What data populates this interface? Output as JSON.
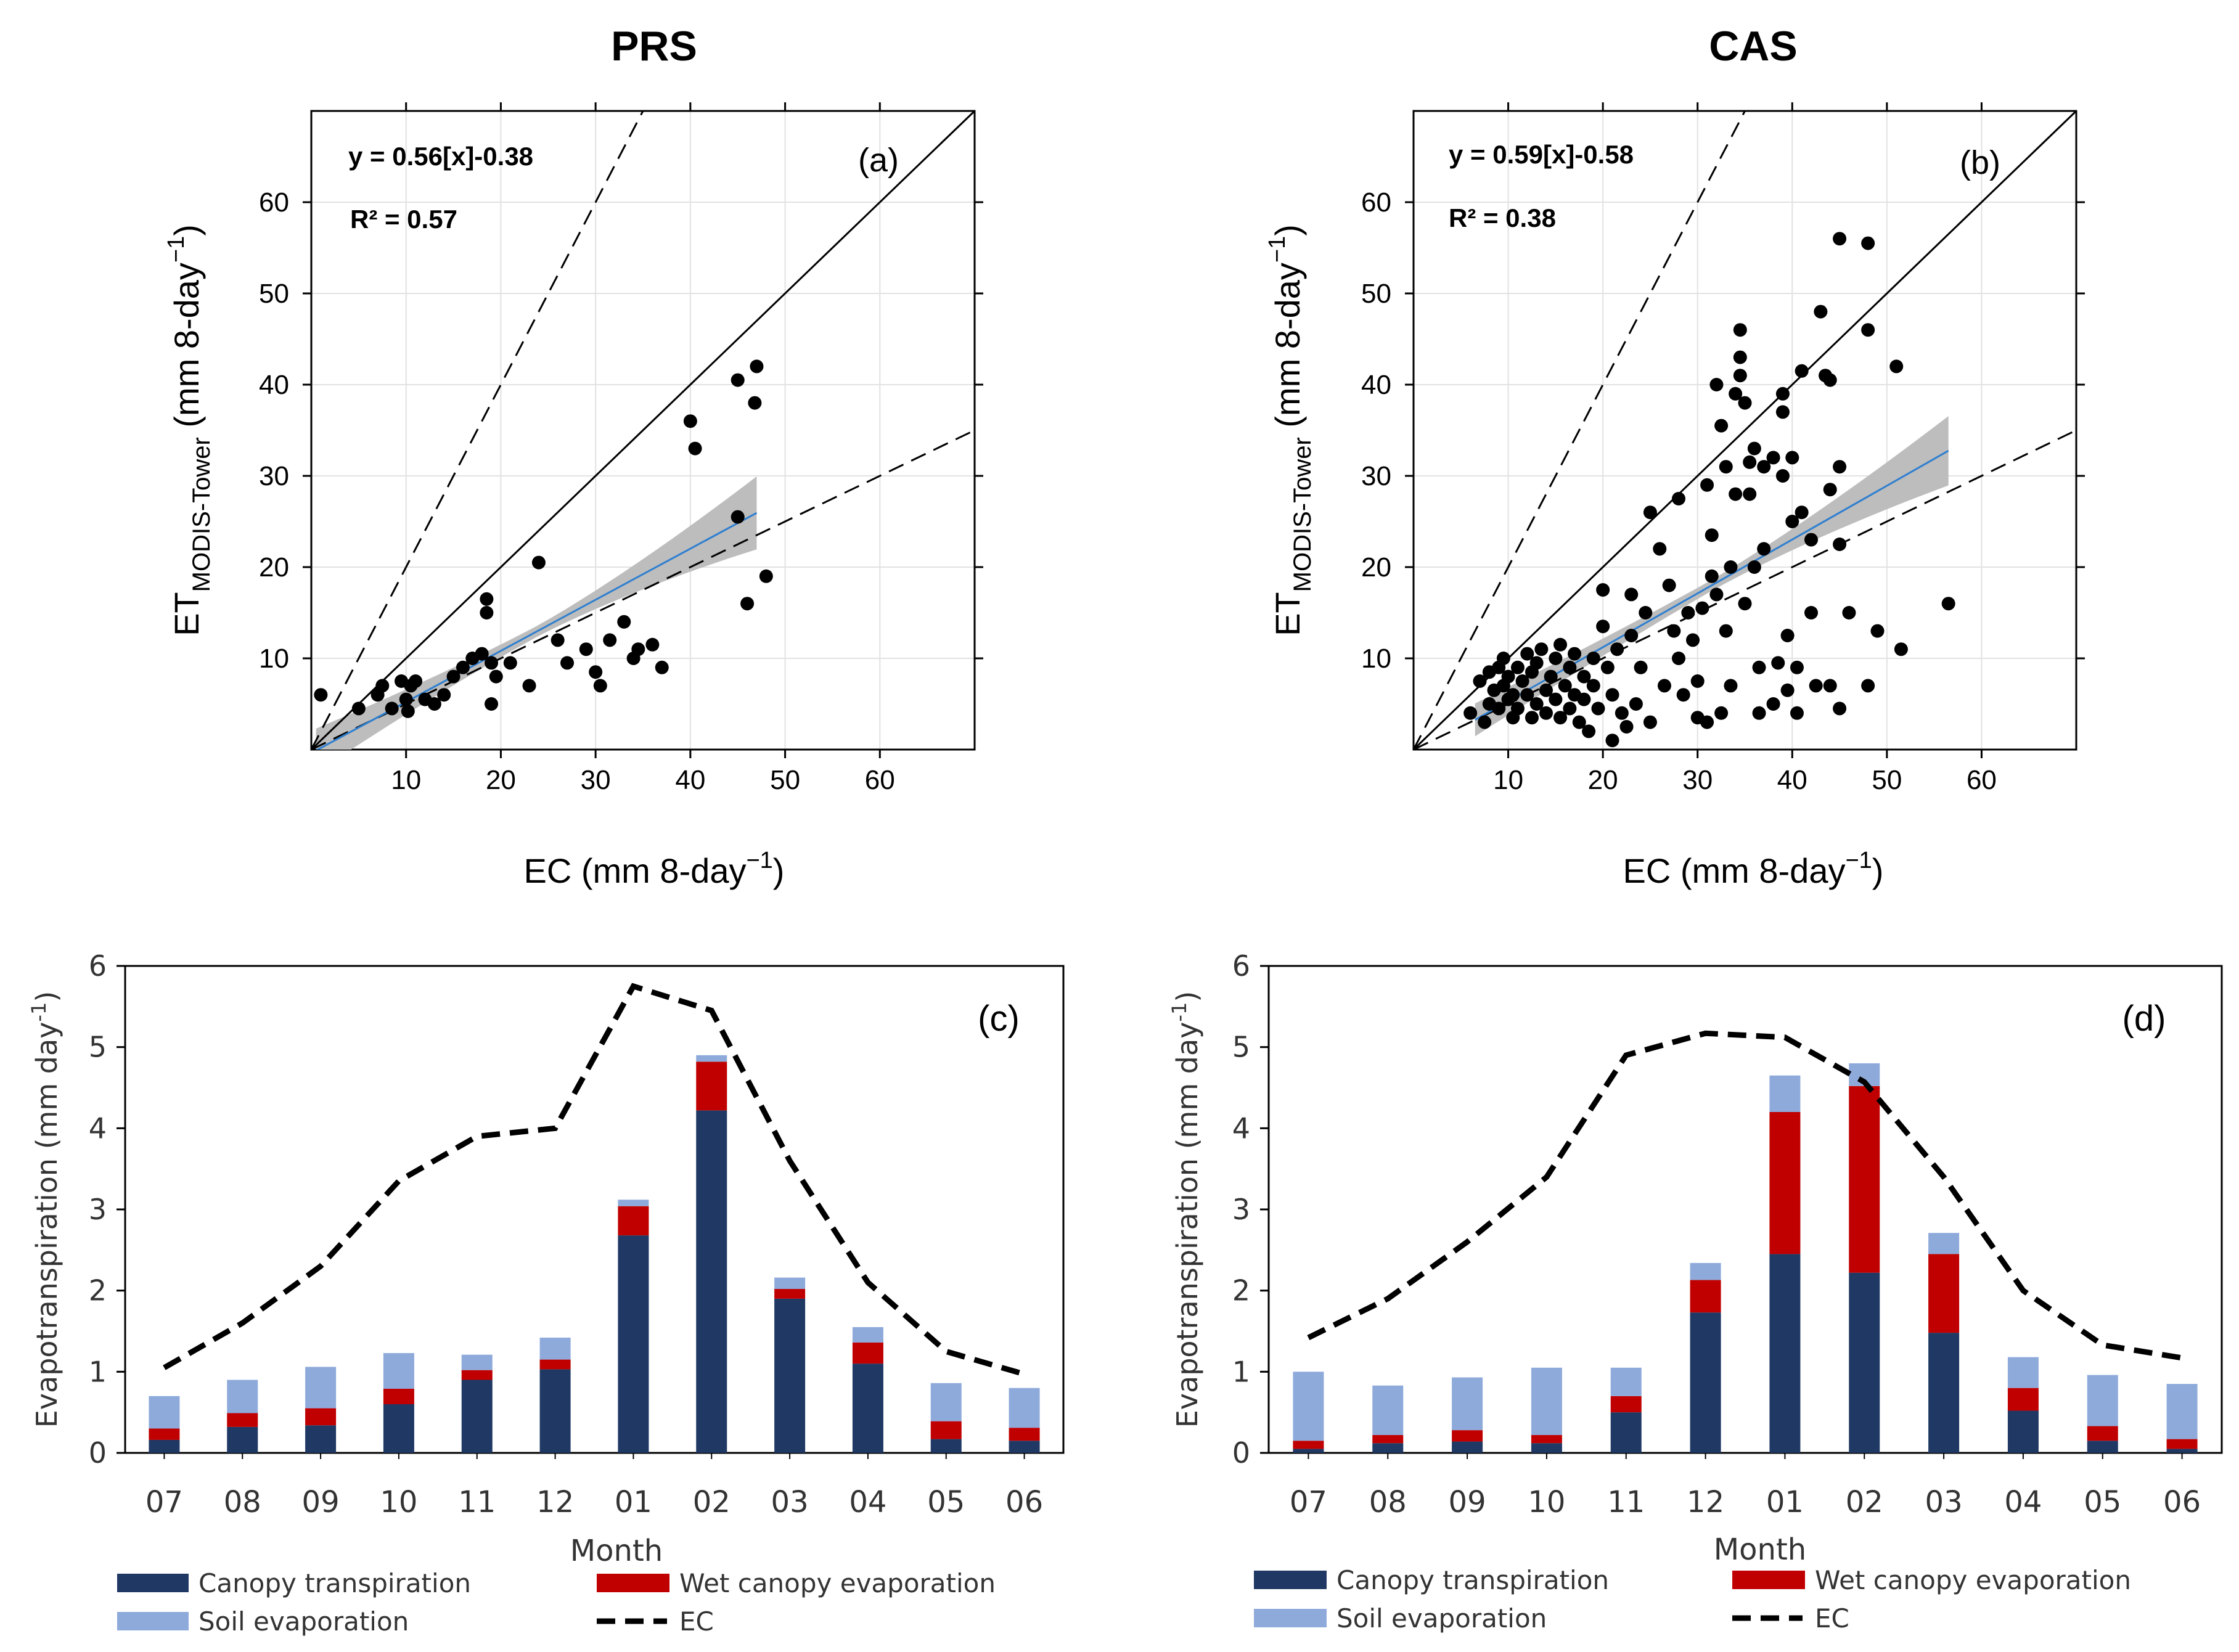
{
  "chart_data": [
    {
      "id": "a",
      "type": "scatter",
      "title": "PRS",
      "panel_label": "(a)",
      "xlabel": "EC (mm 8-day",
      "xlabel_sup": "−1",
      "xlabel_end": ")",
      "ylabel": "ET",
      "ylabel_sub": "MODIS-Tower",
      "ylabel_rest": " (mm 8-day",
      "ylabel_sup": "−1",
      "ylabel_end": ")",
      "equation": "y = 0.56[x]-0.38",
      "r2": "R² = 0.57",
      "xlim": [
        0,
        70
      ],
      "ylim": [
        0,
        70
      ],
      "xticks": [
        10,
        20,
        30,
        40,
        50,
        60
      ],
      "yticks": [
        10,
        20,
        30,
        40,
        50,
        60
      ],
      "xticklabels": [
        "10",
        "20",
        "30",
        "40",
        "50",
        "60"
      ],
      "yticklabels": [
        "10",
        "20",
        "30",
        "40",
        "50",
        "60"
      ],
      "fit": {
        "x0": 0.5,
        "x1": 47,
        "ci0": 2.4,
        "ci1": 4.0
      },
      "points": [
        [
          1,
          6
        ],
        [
          5,
          4.5
        ],
        [
          7.5,
          7
        ],
        [
          7,
          6
        ],
        [
          8.5,
          4.5
        ],
        [
          9.5,
          7.5
        ],
        [
          10,
          5.5
        ],
        [
          10.5,
          7
        ],
        [
          10.2,
          4.2
        ],
        [
          11,
          7.5
        ],
        [
          12,
          5.5
        ],
        [
          13,
          5
        ],
        [
          14,
          6
        ],
        [
          15,
          8
        ],
        [
          16,
          9
        ],
        [
          17,
          10
        ],
        [
          18,
          10.5
        ],
        [
          19,
          9.5
        ],
        [
          19.5,
          8
        ],
        [
          18.5,
          16.5
        ],
        [
          18.5,
          15
        ],
        [
          19,
          5
        ],
        [
          21,
          9.5
        ],
        [
          23,
          7
        ],
        [
          24,
          20.5
        ],
        [
          26,
          12
        ],
        [
          27,
          9.5
        ],
        [
          29,
          11
        ],
        [
          30,
          8.5
        ],
        [
          30.5,
          7
        ],
        [
          31.5,
          12
        ],
        [
          33,
          14
        ],
        [
          34,
          10
        ],
        [
          34.5,
          11
        ],
        [
          36,
          11.5
        ],
        [
          37,
          9
        ],
        [
          40,
          36
        ],
        [
          40.5,
          33
        ],
        [
          45,
          25.5
        ],
        [
          45,
          40.5
        ],
        [
          46,
          16
        ],
        [
          47,
          42
        ],
        [
          46.8,
          38
        ],
        [
          48,
          19
        ]
      ]
    },
    {
      "id": "b",
      "type": "scatter",
      "title": "CAS",
      "panel_label": "(b)",
      "xlabel": "EC (mm 8-day",
      "xlabel_sup": "−1",
      "xlabel_end": ")",
      "ylabel": "ET",
      "ylabel_sub": "MODIS-Tower",
      "ylabel_rest": " (mm 8-day",
      "ylabel_sup": "−1",
      "ylabel_end": ")",
      "equation": "y = 0.59[x]-0.58",
      "r2": "R² = 0.38",
      "xlim": [
        0,
        70
      ],
      "ylim": [
        0,
        70
      ],
      "xticks": [
        10,
        20,
        30,
        40,
        50,
        60
      ],
      "yticks": [
        10,
        20,
        30,
        40,
        50,
        60
      ],
      "xticklabels": [
        "10",
        "20",
        "30",
        "40",
        "50",
        "60"
      ],
      "yticklabels": [
        "10",
        "20",
        "30",
        "40",
        "50",
        "60"
      ],
      "fit": {
        "x0": 6.5,
        "x1": 56.5,
        "ci0": 1.8,
        "ci1": 3.8
      },
      "points": [
        [
          6,
          4
        ],
        [
          7,
          7.5
        ],
        [
          7.5,
          3
        ],
        [
          8,
          5
        ],
        [
          8,
          8.5
        ],
        [
          8.5,
          6.5
        ],
        [
          9,
          9
        ],
        [
          9,
          4.5
        ],
        [
          9.5,
          7
        ],
        [
          9.5,
          10
        ],
        [
          10,
          5.5
        ],
        [
          10,
          8
        ],
        [
          10.5,
          3.5
        ],
        [
          10.5,
          6
        ],
        [
          11,
          9
        ],
        [
          11,
          4.5
        ],
        [
          11.5,
          7.5
        ],
        [
          12,
          10.5
        ],
        [
          12,
          6
        ],
        [
          12.5,
          3.5
        ],
        [
          12.5,
          8.5
        ],
        [
          13,
          5
        ],
        [
          13,
          9.5
        ],
        [
          13.5,
          11
        ],
        [
          14,
          6.5
        ],
        [
          14,
          4
        ],
        [
          14.5,
          8
        ],
        [
          15,
          10
        ],
        [
          15,
          5.5
        ],
        [
          15.5,
          3.5
        ],
        [
          15.5,
          11.5
        ],
        [
          16,
          7
        ],
        [
          16.5,
          9
        ],
        [
          16.5,
          4.5
        ],
        [
          17,
          6
        ],
        [
          17,
          10.5
        ],
        [
          17.5,
          3
        ],
        [
          18,
          8
        ],
        [
          18,
          5.5
        ],
        [
          18.5,
          2
        ],
        [
          19,
          7
        ],
        [
          19,
          10
        ],
        [
          19.5,
          4.5
        ],
        [
          20,
          13.5
        ],
        [
          20,
          17.5
        ],
        [
          20.5,
          9
        ],
        [
          21,
          6
        ],
        [
          21,
          1
        ],
        [
          21.5,
          11
        ],
        [
          22,
          4
        ],
        [
          22.5,
          2.5
        ],
        [
          23,
          17
        ],
        [
          23,
          12.5
        ],
        [
          23.5,
          5
        ],
        [
          24,
          9
        ],
        [
          24.5,
          15
        ],
        [
          25,
          26
        ],
        [
          25,
          3
        ],
        [
          26,
          22
        ],
        [
          26.5,
          7
        ],
        [
          27,
          18
        ],
        [
          27.5,
          13
        ],
        [
          28,
          27.5
        ],
        [
          28,
          10
        ],
        [
          28.5,
          6
        ],
        [
          29,
          15
        ],
        [
          29.5,
          12
        ],
        [
          30,
          7.5
        ],
        [
          30,
          3.5
        ],
        [
          30.5,
          15.5
        ],
        [
          31,
          3
        ],
        [
          31,
          29
        ],
        [
          31.5,
          23.5
        ],
        [
          31.5,
          19
        ],
        [
          32,
          40
        ],
        [
          32,
          17
        ],
        [
          32.5,
          35.5
        ],
        [
          32.5,
          4
        ],
        [
          33,
          31
        ],
        [
          33,
          13
        ],
        [
          33.5,
          20
        ],
        [
          33.5,
          7
        ],
        [
          34,
          39
        ],
        [
          34,
          28
        ],
        [
          34.5,
          43
        ],
        [
          34.5,
          46
        ],
        [
          34.5,
          41
        ],
        [
          35,
          38
        ],
        [
          35,
          16
        ],
        [
          35.5,
          31.5
        ],
        [
          35.5,
          28
        ],
        [
          36,
          33
        ],
        [
          36,
          20
        ],
        [
          36.5,
          4
        ],
        [
          36.5,
          9
        ],
        [
          37,
          31
        ],
        [
          37,
          22
        ],
        [
          38,
          32
        ],
        [
          38,
          5
        ],
        [
          38.5,
          9.5
        ],
        [
          39,
          39
        ],
        [
          39,
          37
        ],
        [
          39,
          30
        ],
        [
          39.5,
          6.5
        ],
        [
          39.5,
          12.5
        ],
        [
          40,
          32
        ],
        [
          40,
          25
        ],
        [
          40.5,
          9
        ],
        [
          40.5,
          4
        ],
        [
          41,
          41.5
        ],
        [
          41,
          26
        ],
        [
          42,
          23
        ],
        [
          42,
          15
        ],
        [
          42.5,
          7
        ],
        [
          43,
          48
        ],
        [
          43.5,
          41
        ],
        [
          44,
          28.5
        ],
        [
          44,
          7
        ],
        [
          44,
          40.5
        ],
        [
          45,
          56
        ],
        [
          45,
          31
        ],
        [
          45,
          22.5
        ],
        [
          45,
          4.5
        ],
        [
          46,
          15
        ],
        [
          48,
          46
        ],
        [
          48,
          55.5
        ],
        [
          48,
          7
        ],
        [
          49,
          13
        ],
        [
          51,
          42
        ],
        [
          51.5,
          11
        ],
        [
          56.5,
          16
        ]
      ]
    },
    {
      "id": "c",
      "type": "bar",
      "stacked": true,
      "panel_label": "(c)",
      "xlabel": "Month",
      "ylabel": "Evapotranspiration (mm day",
      "ylabel_sup": "-1",
      "ylabel_end": ")",
      "ylim": [
        0,
        6
      ],
      "yticks": [
        0,
        1,
        2,
        3,
        4,
        5,
        6
      ],
      "yticklabels": [
        "0",
        "1",
        "2",
        "3",
        "4",
        "5",
        "6"
      ],
      "categories": [
        "07",
        "08",
        "09",
        "10",
        "11",
        "12",
        "01",
        "02",
        "03",
        "04",
        "05",
        "06"
      ],
      "series": [
        {
          "name": "Canopy transpiration",
          "color": "#1f3864",
          "values": [
            0.16,
            0.32,
            0.34,
            0.6,
            0.9,
            1.03,
            2.68,
            4.22,
            1.9,
            1.1,
            0.17,
            0.15
          ]
        },
        {
          "name": "Wet canopy evaporation",
          "color": "#c00000",
          "values": [
            0.14,
            0.17,
            0.21,
            0.19,
            0.12,
            0.12,
            0.36,
            0.6,
            0.12,
            0.26,
            0.22,
            0.16
          ]
        },
        {
          "name": "Soil evaporation",
          "color": "#8eaadb",
          "values": [
            0.4,
            0.41,
            0.51,
            0.44,
            0.19,
            0.27,
            0.08,
            0.08,
            0.14,
            0.19,
            0.47,
            0.49
          ]
        }
      ],
      "line": {
        "name": "EC",
        "values": [
          1.05,
          1.6,
          2.3,
          3.35,
          3.9,
          4.0,
          5.75,
          5.45,
          3.6,
          2.1,
          1.25,
          0.97
        ]
      }
    },
    {
      "id": "d",
      "type": "bar",
      "stacked": true,
      "panel_label": "(d)",
      "xlabel": "Month",
      "ylabel": "Evapotranspiration (mm day",
      "ylabel_sup": "-1",
      "ylabel_end": ")",
      "ylim": [
        0,
        6
      ],
      "yticks": [
        0,
        1,
        2,
        3,
        4,
        5,
        6
      ],
      "yticklabels": [
        "0",
        "1",
        "2",
        "3",
        "4",
        "5",
        "6"
      ],
      "categories": [
        "07",
        "08",
        "09",
        "10",
        "11",
        "12",
        "01",
        "02",
        "03",
        "04",
        "05",
        "06"
      ],
      "series": [
        {
          "name": "Canopy transpiration",
          "color": "#1f3864",
          "values": [
            0.05,
            0.12,
            0.14,
            0.12,
            0.5,
            1.73,
            2.45,
            2.22,
            1.48,
            0.52,
            0.15,
            0.05
          ]
        },
        {
          "name": "Wet canopy evaporation",
          "color": "#c00000",
          "values": [
            0.1,
            0.1,
            0.14,
            0.1,
            0.2,
            0.4,
            1.75,
            2.3,
            0.97,
            0.28,
            0.18,
            0.12
          ]
        },
        {
          "name": "Soil evaporation",
          "color": "#8eaadb",
          "values": [
            0.85,
            0.61,
            0.65,
            0.83,
            0.35,
            0.21,
            0.45,
            0.28,
            0.26,
            0.38,
            0.63,
            0.68
          ]
        }
      ],
      "line": {
        "name": "EC",
        "values": [
          1.42,
          1.9,
          2.6,
          3.4,
          4.9,
          5.17,
          5.12,
          4.57,
          3.4,
          2.0,
          1.33,
          1.17
        ]
      }
    }
  ]
}
